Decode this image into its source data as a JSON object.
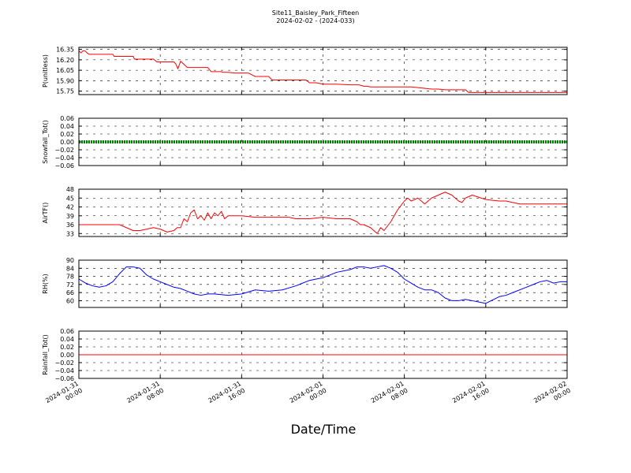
{
  "title": "Site11_Baisley_Park_Fifteen",
  "subtitle": "2024-02-02 - (2024-033)",
  "xlabel": "Date/Time",
  "colors": {
    "p": "#ff0000",
    "snow": "#008000",
    "air": "#ff0000",
    "rh": "#0000ff",
    "rain": "#ff0000"
  },
  "chart_data": [
    {
      "type": "line",
      "ylabel": "P(unitless)",
      "ylim": [
        15.7,
        16.38
      ],
      "yticks": [
        "16.35",
        "16.20",
        "16.05",
        "15.90",
        "15.75"
      ],
      "ytick_values": [
        16.35,
        16.2,
        16.05,
        15.9,
        15.75
      ],
      "grid": true,
      "x": [
        0,
        0.3,
        0.6,
        0.9,
        1.2,
        1.5,
        5,
        5.2,
        8,
        8.2,
        11,
        11.5,
        14,
        14.3,
        14.6,
        15,
        16,
        17,
        18,
        19,
        19.5,
        21,
        21.2,
        22,
        23,
        25,
        26,
        26.5,
        28,
        28.5,
        29,
        30,
        31,
        32,
        33.5,
        34,
        35,
        36,
        38,
        40,
        41,
        41.3,
        42,
        42.5,
        43,
        45,
        46,
        48,
        49,
        50,
        52,
        53,
        54,
        55,
        57,
        57.5,
        60,
        62,
        64,
        66,
        68,
        70,
        72
      ],
      "series": [
        {
          "color_key": "p",
          "values": [
            16.33,
            16.3,
            16.33,
            16.33,
            16.3,
            16.28,
            16.28,
            16.25,
            16.25,
            16.21,
            16.21,
            16.17,
            16.17,
            16.14,
            16.07,
            16.18,
            16.09,
            16.09,
            16.09,
            16.09,
            16.03,
            16.03,
            16.02,
            16.02,
            16.01,
            16.01,
            15.96,
            15.96,
            15.96,
            15.91,
            15.91,
            15.91,
            15.91,
            15.91,
            15.91,
            15.87,
            15.87,
            15.85,
            15.85,
            15.84,
            15.84,
            15.84,
            15.82,
            15.82,
            15.81,
            15.81,
            15.81,
            15.81,
            15.81,
            15.8,
            15.78,
            15.78,
            15.77,
            15.77,
            15.77,
            15.73,
            15.73,
            15.73,
            15.73,
            15.73,
            15.73,
            15.73,
            15.73
          ]
        }
      ]
    },
    {
      "type": "line",
      "ylabel": "Snowfall_Tot()",
      "ylim": [
        -0.06,
        0.06
      ],
      "yticks": [
        "0.06",
        "0.04",
        "0.02",
        "0.00",
        "−0.02",
        "−0.04",
        "−0.06"
      ],
      "ytick_values": [
        0.06,
        0.04,
        0.02,
        0,
        -0.02,
        -0.04,
        -0.06
      ],
      "grid": true,
      "x": [
        0,
        72
      ],
      "series": [
        {
          "color_key": "snow",
          "values": [
            0,
            0
          ],
          "markers": true
        }
      ]
    },
    {
      "type": "line",
      "ylabel": "AirTF()",
      "ylim": [
        32,
        48
      ],
      "yticks": [
        "48",
        "45",
        "42",
        "39",
        "36",
        "33"
      ],
      "ytick_values": [
        48,
        45,
        42,
        39,
        36,
        33
      ],
      "grid": true,
      "x": [
        0,
        2,
        4,
        5,
        6,
        7,
        8,
        9,
        10,
        11,
        12,
        12.5,
        13,
        14,
        14.5,
        15,
        15.5,
        16,
        16.5,
        17,
        17.5,
        18,
        18.5,
        19,
        19.5,
        20,
        20.5,
        21,
        21.5,
        22,
        24,
        26,
        28,
        30,
        31,
        32,
        34,
        36,
        38,
        40,
        41,
        41.5,
        42,
        42.5,
        43,
        43.5,
        44,
        44.5,
        45,
        46,
        47,
        48,
        48.5,
        49,
        50,
        51,
        52,
        53,
        54,
        55,
        56,
        56.5,
        57,
        58,
        60,
        62,
        63,
        65,
        67,
        69,
        70,
        72
      ],
      "series": [
        {
          "color_key": "air",
          "values": [
            36,
            36,
            36,
            36,
            36,
            35,
            34,
            34,
            34.5,
            35,
            34.5,
            34,
            33.5,
            34,
            35,
            35,
            38,
            37,
            40,
            41,
            38,
            39,
            37.5,
            40,
            38,
            40,
            39,
            40.5,
            38,
            39,
            39,
            38.5,
            38.5,
            38.5,
            38.5,
            38,
            38,
            38.5,
            38,
            38,
            37,
            36,
            36,
            35.5,
            35,
            34,
            33,
            35,
            34,
            37,
            41,
            44,
            45,
            44,
            45,
            43,
            45,
            46,
            47,
            46,
            44,
            43.5,
            45,
            46,
            44.5,
            44,
            44,
            43,
            43,
            43,
            43,
            43
          ]
        }
      ]
    },
    {
      "type": "line",
      "ylabel": "RH(%)",
      "ylim": [
        55,
        90
      ],
      "yticks": [
        "90",
        "84",
        "78",
        "72",
        "66",
        "60"
      ],
      "ytick_values": [
        90,
        84,
        78,
        72,
        66,
        60
      ],
      "grid": true,
      "x": [
        0,
        1,
        2,
        3,
        4,
        5,
        6,
        7,
        8,
        9,
        10,
        11,
        12,
        13,
        14,
        15,
        16,
        17,
        18,
        19,
        20,
        22,
        24,
        26,
        28,
        30,
        32,
        34,
        36,
        38,
        40,
        41,
        42,
        43,
        44,
        45,
        46,
        47,
        48,
        49,
        50,
        51,
        52,
        53,
        54,
        55,
        56,
        57,
        58,
        60,
        62,
        63,
        64,
        66,
        67,
        68,
        69,
        70,
        71,
        72
      ],
      "series": [
        {
          "color_key": "rh",
          "values": [
            76,
            73,
            71,
            70,
            71,
            74,
            80,
            85,
            85,
            84,
            79,
            76,
            74,
            72,
            70,
            69,
            67,
            65,
            64,
            65,
            65,
            64,
            65,
            68,
            67,
            68,
            71,
            75,
            77,
            81,
            83,
            85,
            85,
            84,
            85,
            86,
            84,
            81,
            76,
            73,
            70,
            68,
            68,
            66,
            62,
            60,
            60,
            61,
            60,
            58,
            63,
            64,
            66,
            70,
            72,
            74,
            75,
            73,
            74,
            74
          ]
        }
      ]
    },
    {
      "type": "line",
      "ylabel": "Rainfall_Tot()",
      "ylim": [
        -0.06,
        0.06
      ],
      "yticks": [
        "0.06",
        "0.04",
        "0.02",
        "0.00",
        "−0.02",
        "−0.04",
        "−0.06"
      ],
      "ytick_values": [
        0.06,
        0.04,
        0.02,
        0,
        -0.02,
        -0.04,
        -0.06
      ],
      "grid": true,
      "x": [
        0,
        72
      ],
      "series": [
        {
          "color_key": "rain",
          "values": [
            0,
            0
          ]
        }
      ]
    }
  ],
  "xticks": [
    {
      "value": 0,
      "line1": "2024-01-31",
      "line2": "00:00"
    },
    {
      "value": 12,
      "line1": "2024-01-31",
      "line2": "08:00"
    },
    {
      "value": 24,
      "line1": "2024-01-31",
      "line2": "16:00"
    },
    {
      "value": 36,
      "line1": "2024-02-01",
      "line2": "00:00"
    },
    {
      "value": 48,
      "line1": "2024-02-01",
      "line2": "08:00"
    },
    {
      "value": 60,
      "line1": "2024-02-01",
      "line2": "16:00"
    },
    {
      "value": 72,
      "line1": "2024-02-02",
      "line2": "00:00"
    }
  ],
  "xlim": [
    0,
    72
  ]
}
